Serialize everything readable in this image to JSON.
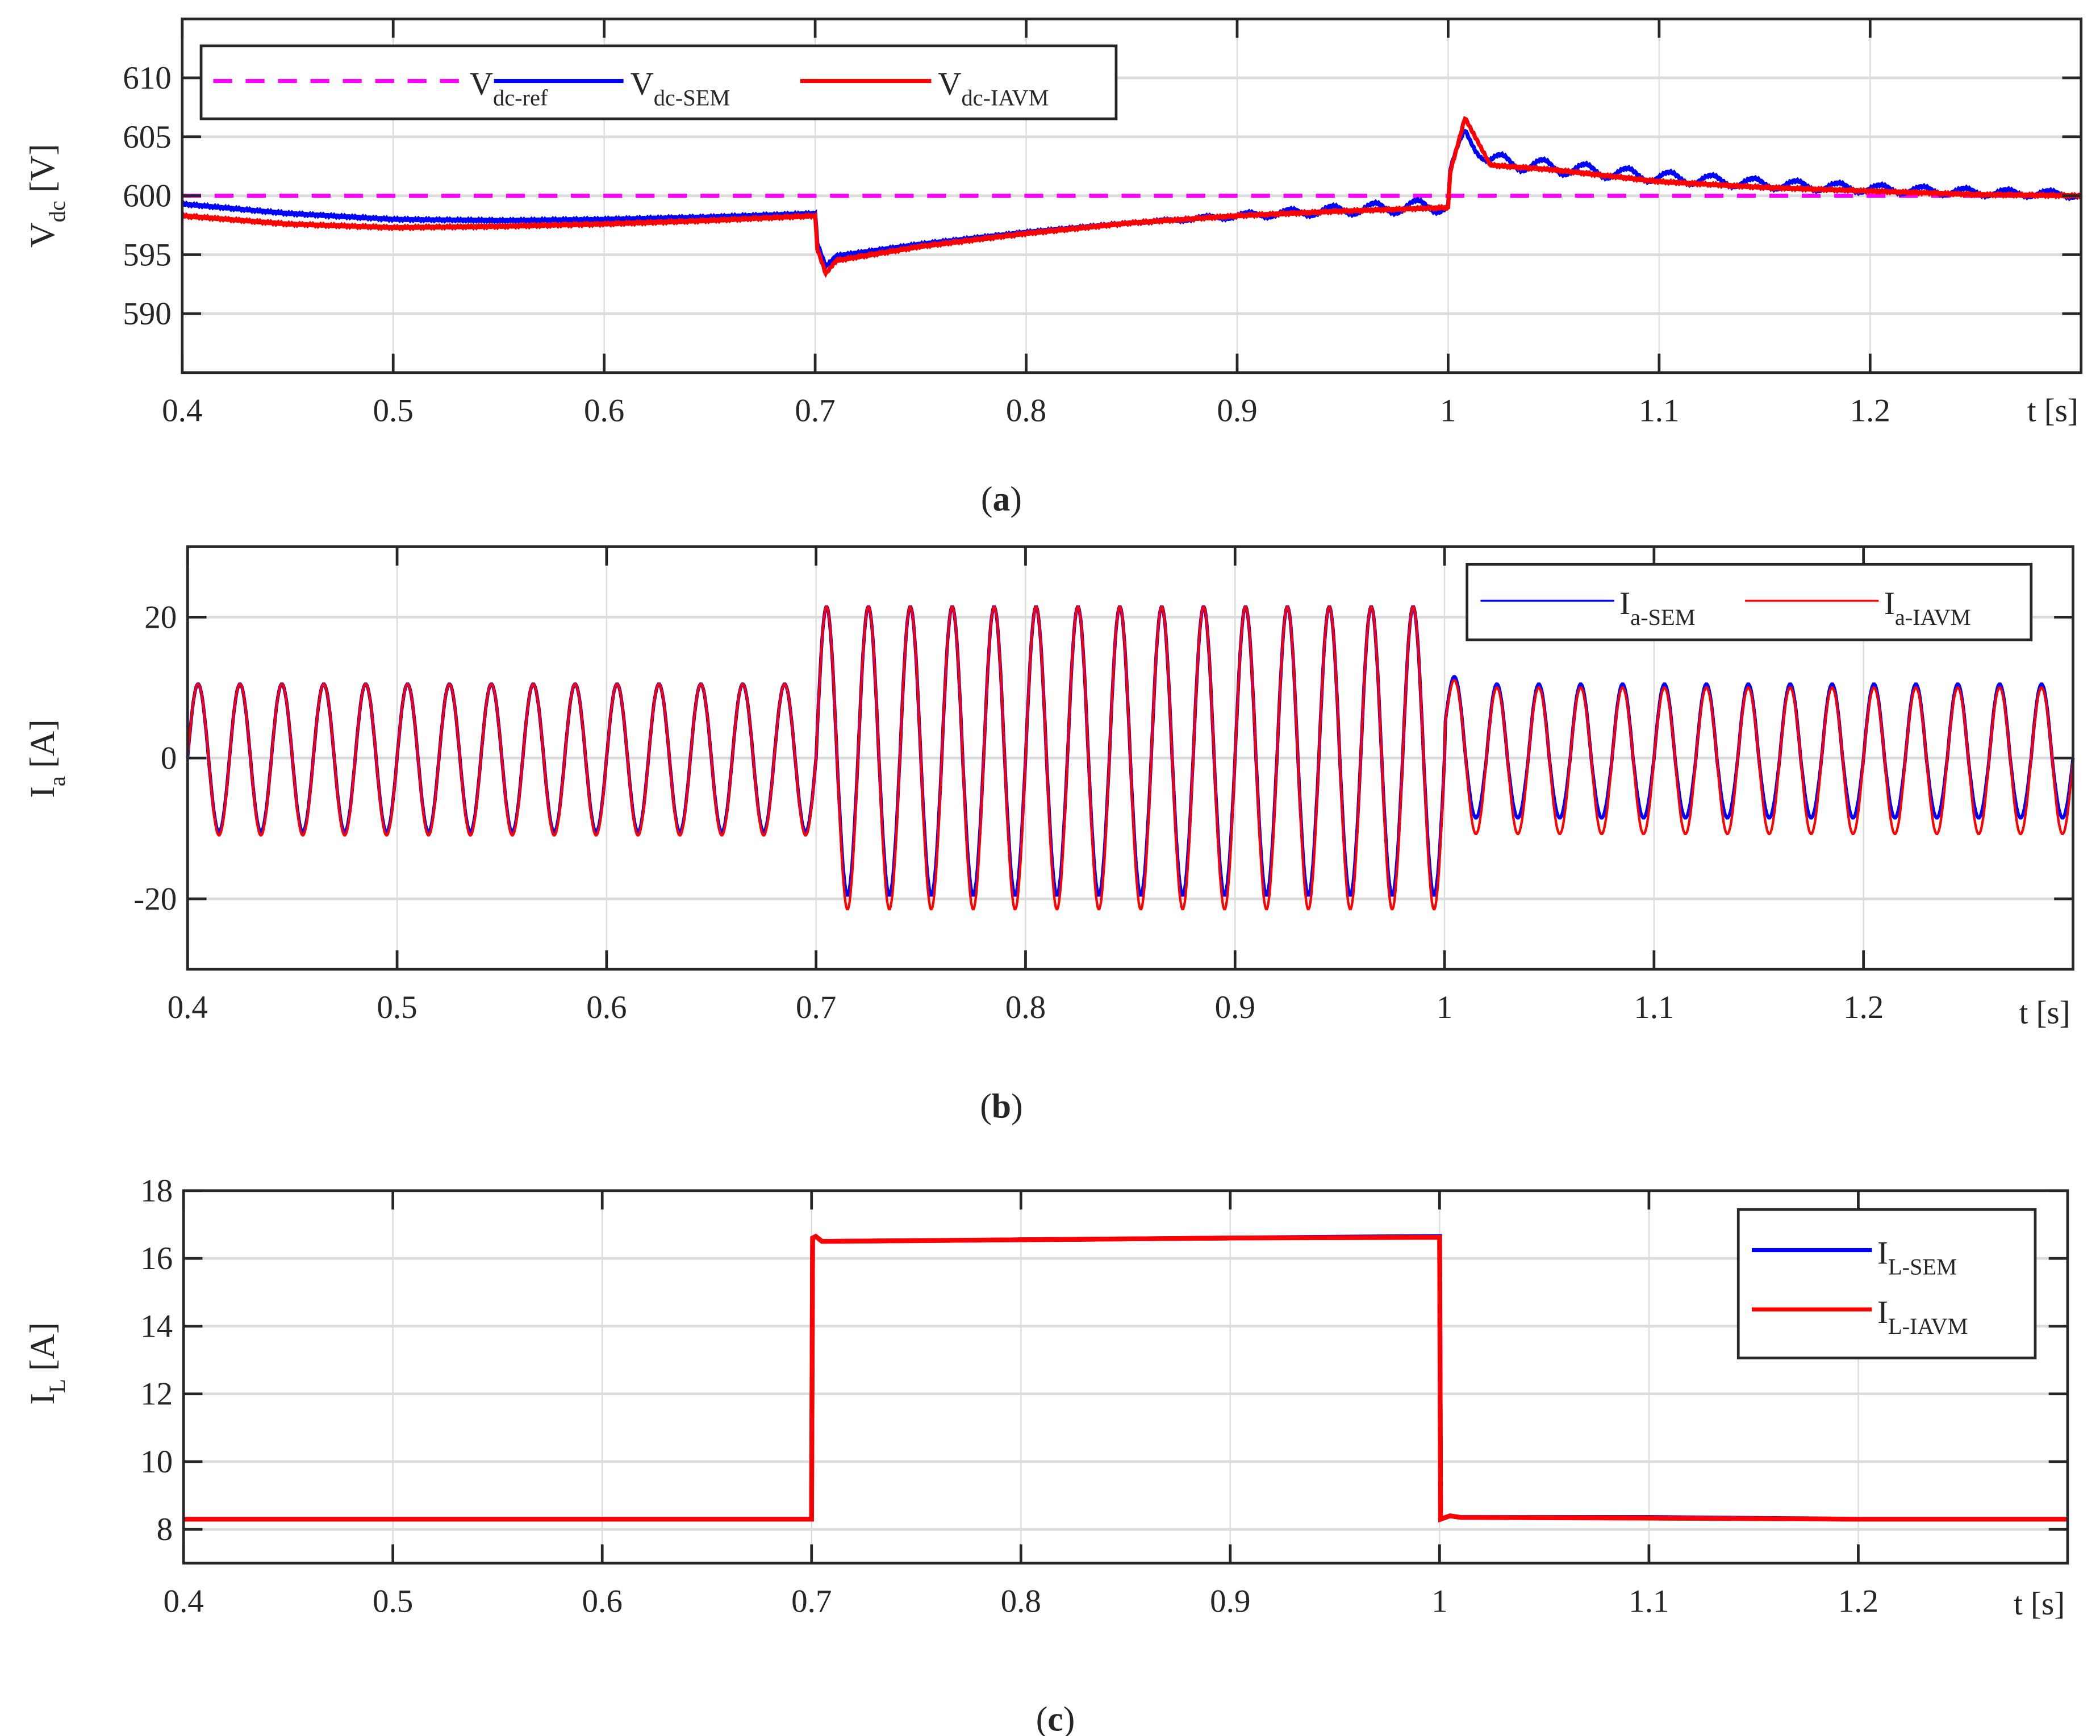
{
  "figure": {
    "panels": [
      "(a)",
      "(b)",
      "(c)"
    ]
  },
  "chart_data": [
    {
      "id": "a",
      "type": "line",
      "caption_letter": "a",
      "title": "",
      "xlabel": "t [s]",
      "ylabel_main": "V",
      "ylabel_sub": "dc",
      "ylabel_unit": "[V]",
      "xlim": [
        0.4,
        1.3
      ],
      "ylim": [
        585,
        615
      ],
      "xticks": [
        "0.4",
        "0.5",
        "0.6",
        "0.7",
        "0.8",
        "0.9",
        "1",
        "1.1",
        "1.2"
      ],
      "yticks": [
        "590",
        "595",
        "600",
        "605",
        "610"
      ],
      "grid": true,
      "legend_position": "top-left, horizontal",
      "legend": [
        {
          "main": "V",
          "sub": "dc-ref",
          "color": "#FF00FF",
          "style": "dashed"
        },
        {
          "main": "V",
          "sub": "dc-SEM",
          "color": "#0000FF",
          "style": "solid"
        },
        {
          "main": "V",
          "sub": "dc-IAVM",
          "color": "#FF0000",
          "style": "solid"
        }
      ],
      "series": [
        {
          "name": "Vdc-ref",
          "x": [
            0.4,
            1.3
          ],
          "values": [
            600,
            600
          ]
        },
        {
          "name": "Vdc-SEM",
          "x": [
            0.4,
            0.45,
            0.5,
            0.55,
            0.6,
            0.65,
            0.7,
            0.701,
            0.705,
            0.71,
            0.75,
            0.8,
            0.85,
            0.9,
            0.95,
            1.0,
            1.001,
            1.008,
            1.02,
            1.05,
            1.1,
            1.15,
            1.2,
            1.25,
            1.3
          ],
          "values": [
            599.3,
            598.5,
            598.0,
            597.9,
            598.0,
            598.2,
            598.5,
            596.0,
            594.0,
            594.9,
            595.9,
            596.9,
            597.7,
            598.3,
            598.8,
            599.2,
            602.0,
            605.2,
            603.0,
            602.4,
            601.6,
            601.0,
            600.6,
            600.3,
            600.1
          ],
          "ripple_after_0.85": 0.6
        },
        {
          "name": "Vdc-IAVM",
          "x": [
            0.4,
            0.45,
            0.5,
            0.55,
            0.6,
            0.65,
            0.7,
            0.701,
            0.705,
            0.71,
            0.75,
            0.8,
            0.85,
            0.9,
            0.95,
            1.0,
            1.001,
            1.008,
            1.02,
            1.05,
            1.1,
            1.15,
            1.2,
            1.25,
            1.3
          ],
          "values": [
            598.3,
            597.6,
            597.3,
            597.4,
            597.6,
            597.9,
            598.3,
            595.5,
            593.4,
            594.5,
            595.7,
            596.8,
            597.7,
            598.3,
            598.7,
            599.0,
            602.0,
            606.6,
            602.6,
            602.2,
            601.2,
            600.7,
            600.4,
            600.1,
            600.0
          ]
        }
      ]
    },
    {
      "id": "b",
      "type": "line",
      "caption_letter": "b",
      "title": "",
      "xlabel": "t [s]",
      "ylabel_main": "I",
      "ylabel_sub": "a",
      "ylabel_unit": "[A]",
      "xlim": [
        0.4,
        1.3
      ],
      "ylim": [
        -30,
        30
      ],
      "xticks": [
        "0.4",
        "0.5",
        "0.6",
        "0.7",
        "0.8",
        "0.9",
        "1",
        "1.1",
        "1.2"
      ],
      "yticks": [
        "-20",
        "0",
        "20"
      ],
      "grid": true,
      "legend_position": "top-right, horizontal",
      "legend": [
        {
          "main": "I",
          "sub": "a-SEM",
          "color": "#0000FF",
          "style": "solid"
        },
        {
          "main": "I",
          "sub": "a-IAVM",
          "color": "#FF0000",
          "style": "solid"
        }
      ],
      "frequency_hz": 50,
      "segments": [
        {
          "t_start": 0.4,
          "t_end": 0.7,
          "sem_pos_peak": 10.5,
          "sem_neg_peak": -10.5,
          "iavm_pos_peak": 10.5,
          "iavm_neg_peak": -11.0
        },
        {
          "t_start": 0.7,
          "t_end": 1.0,
          "sem_pos_peak": 21.5,
          "sem_neg_peak": -19.5,
          "iavm_pos_peak": 21.5,
          "iavm_neg_peak": -21.5
        },
        {
          "t_start": 1.0,
          "t_end": 1.3,
          "sem_pos_peak": 10.5,
          "sem_neg_peak": -8.5,
          "iavm_pos_peak": 10.0,
          "iavm_neg_peak": -10.8
        }
      ],
      "transient_peak_at_1.0": 14.5
    },
    {
      "id": "c",
      "type": "line",
      "caption_letter": "c",
      "title": "",
      "xlabel": "t [s]",
      "ylabel_main": "I",
      "ylabel_sub": "L",
      "ylabel_unit": "[A]",
      "xlim": [
        0.4,
        1.3
      ],
      "ylim": [
        7,
        18
      ],
      "xticks": [
        "0.4",
        "0.5",
        "0.6",
        "0.7",
        "0.8",
        "0.9",
        "1",
        "1.1",
        "1.2"
      ],
      "yticks": [
        "8",
        "10",
        "12",
        "14",
        "16",
        "18"
      ],
      "grid": true,
      "legend_position": "top-right, vertical",
      "legend": [
        {
          "main": "I",
          "sub": "L-SEM",
          "color": "#0000FF",
          "style": "solid"
        },
        {
          "main": "I",
          "sub": "L-IAVM",
          "color": "#FF0000",
          "style": "solid"
        }
      ],
      "series": [
        {
          "name": "IL-SEM",
          "x": [
            0.4,
            0.7,
            0.7005,
            0.702,
            0.705,
            0.8,
            0.9,
            1.0,
            1.0005,
            1.005,
            1.01,
            1.1,
            1.2,
            1.3
          ],
          "values": [
            8.3,
            8.3,
            16.6,
            16.65,
            16.5,
            16.55,
            16.6,
            16.65,
            8.3,
            8.4,
            8.35,
            8.35,
            8.3,
            8.3
          ]
        },
        {
          "name": "IL-IAVM",
          "x": [
            0.4,
            0.7,
            0.7005,
            0.702,
            0.705,
            0.8,
            0.9,
            1.0,
            1.0005,
            1.005,
            1.01,
            1.1,
            1.2,
            1.3
          ],
          "values": [
            8.3,
            8.3,
            16.6,
            16.65,
            16.5,
            16.55,
            16.6,
            16.62,
            8.3,
            8.4,
            8.35,
            8.33,
            8.3,
            8.3
          ]
        }
      ]
    }
  ]
}
